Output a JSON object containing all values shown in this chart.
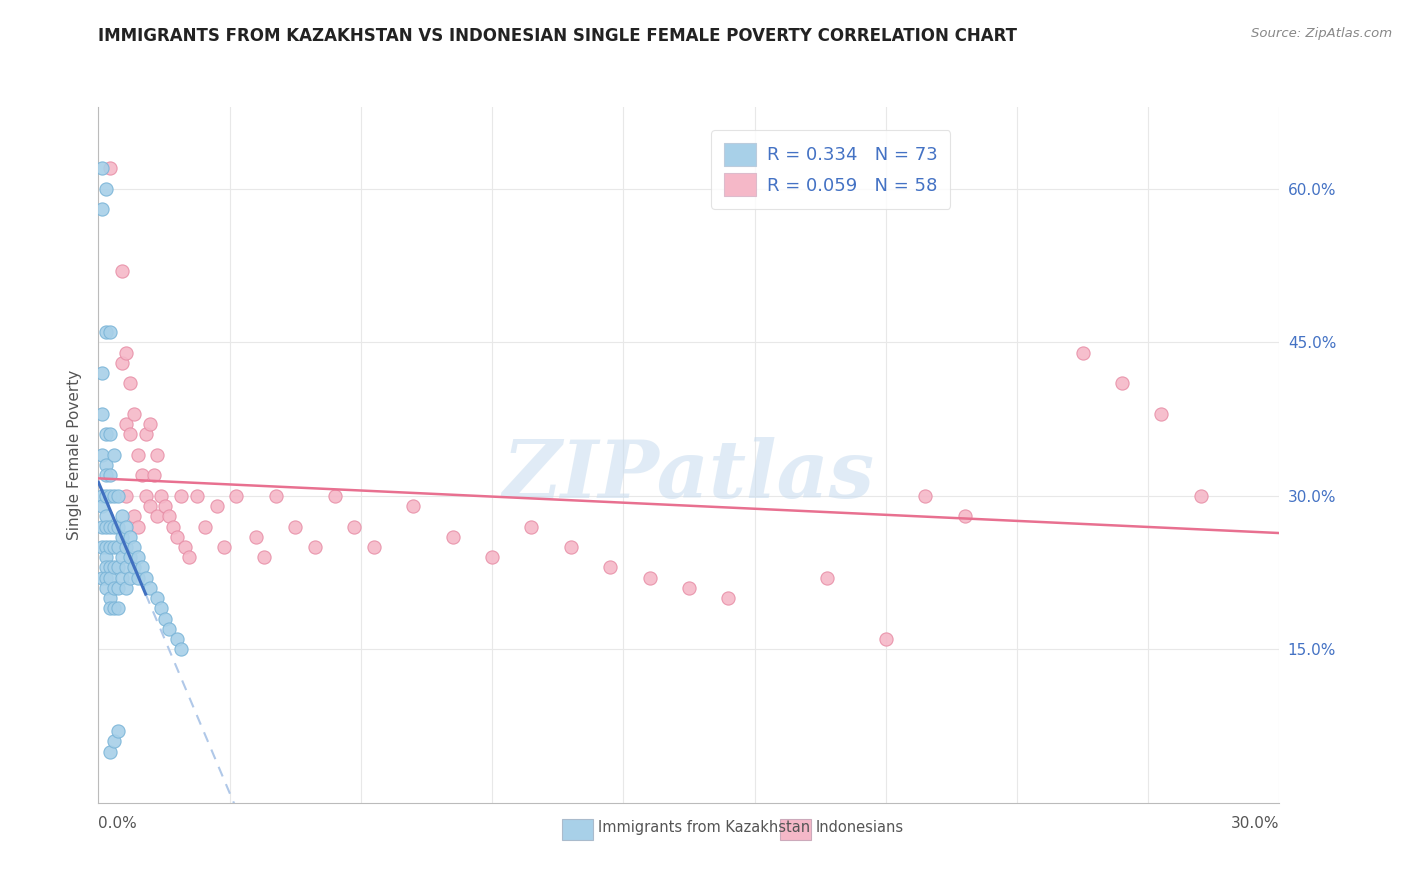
{
  "title": "IMMIGRANTS FROM KAZAKHSTAN VS INDONESIAN SINGLE FEMALE POVERTY CORRELATION CHART",
  "source": "Source: ZipAtlas.com",
  "ylabel": "Single Female Poverty",
  "ylabel_ticks": [
    "15.0%",
    "30.0%",
    "45.0%",
    "60.0%"
  ],
  "ylabel_tick_vals": [
    0.15,
    0.3,
    0.45,
    0.6
  ],
  "xlim": [
    0.0,
    0.3
  ],
  "ylim": [
    0.0,
    0.68
  ],
  "blue_color": "#A8D0E8",
  "pink_color": "#F5B8C8",
  "blue_edge_color": "#7BB5D8",
  "pink_edge_color": "#E890A8",
  "blue_line_color": "#4070C0",
  "pink_line_color": "#E87090",
  "blue_dashed_color": "#B0C8E8",
  "watermark": "ZIPatlas",
  "legend_label1": "Immigrants from Kazakhstan",
  "legend_label2": "Indonesians",
  "legend_text_color": "#4472C4",
  "grid_color": "#E8E8E8",
  "title_color": "#222222",
  "source_color": "#888888",
  "ylabel_color": "#555555",
  "tick_label_color": "#4472C4",
  "bottom_label_color": "#555555",
  "blue_scatter_x": [
    0.001,
    0.001,
    0.001,
    0.001,
    0.001,
    0.001,
    0.001,
    0.001,
    0.001,
    0.001,
    0.002,
    0.002,
    0.002,
    0.002,
    0.002,
    0.002,
    0.002,
    0.002,
    0.002,
    0.002,
    0.002,
    0.002,
    0.002,
    0.003,
    0.003,
    0.003,
    0.003,
    0.003,
    0.003,
    0.003,
    0.003,
    0.003,
    0.003,
    0.004,
    0.004,
    0.004,
    0.004,
    0.004,
    0.004,
    0.004,
    0.005,
    0.005,
    0.005,
    0.005,
    0.005,
    0.005,
    0.006,
    0.006,
    0.006,
    0.006,
    0.007,
    0.007,
    0.007,
    0.007,
    0.008,
    0.008,
    0.008,
    0.009,
    0.009,
    0.01,
    0.01,
    0.011,
    0.012,
    0.013,
    0.015,
    0.016,
    0.017,
    0.018,
    0.02,
    0.021,
    0.003,
    0.004,
    0.005
  ],
  "blue_scatter_y": [
    0.62,
    0.58,
    0.42,
    0.38,
    0.34,
    0.3,
    0.29,
    0.27,
    0.25,
    0.22,
    0.6,
    0.46,
    0.36,
    0.33,
    0.32,
    0.3,
    0.28,
    0.27,
    0.25,
    0.24,
    0.23,
    0.22,
    0.21,
    0.46,
    0.36,
    0.32,
    0.3,
    0.27,
    0.25,
    0.23,
    0.22,
    0.2,
    0.19,
    0.34,
    0.3,
    0.27,
    0.25,
    0.23,
    0.21,
    0.19,
    0.3,
    0.27,
    0.25,
    0.23,
    0.21,
    0.19,
    0.28,
    0.26,
    0.24,
    0.22,
    0.27,
    0.25,
    0.23,
    0.21,
    0.26,
    0.24,
    0.22,
    0.25,
    0.23,
    0.24,
    0.22,
    0.23,
    0.22,
    0.21,
    0.2,
    0.19,
    0.18,
    0.17,
    0.16,
    0.15,
    0.05,
    0.06,
    0.07
  ],
  "pink_scatter_x": [
    0.003,
    0.006,
    0.006,
    0.007,
    0.007,
    0.007,
    0.008,
    0.008,
    0.009,
    0.009,
    0.01,
    0.01,
    0.011,
    0.012,
    0.012,
    0.013,
    0.013,
    0.014,
    0.015,
    0.015,
    0.016,
    0.017,
    0.018,
    0.019,
    0.02,
    0.021,
    0.022,
    0.023,
    0.025,
    0.027,
    0.03,
    0.032,
    0.035,
    0.04,
    0.042,
    0.045,
    0.05,
    0.055,
    0.06,
    0.065,
    0.07,
    0.08,
    0.09,
    0.1,
    0.11,
    0.12,
    0.13,
    0.14,
    0.15,
    0.16,
    0.185,
    0.2,
    0.21,
    0.22,
    0.25,
    0.26,
    0.27,
    0.28
  ],
  "pink_scatter_y": [
    0.62,
    0.52,
    0.43,
    0.44,
    0.37,
    0.3,
    0.41,
    0.36,
    0.38,
    0.28,
    0.34,
    0.27,
    0.32,
    0.36,
    0.3,
    0.37,
    0.29,
    0.32,
    0.34,
    0.28,
    0.3,
    0.29,
    0.28,
    0.27,
    0.26,
    0.3,
    0.25,
    0.24,
    0.3,
    0.27,
    0.29,
    0.25,
    0.3,
    0.26,
    0.24,
    0.3,
    0.27,
    0.25,
    0.3,
    0.27,
    0.25,
    0.29,
    0.26,
    0.24,
    0.27,
    0.25,
    0.23,
    0.22,
    0.21,
    0.2,
    0.22,
    0.16,
    0.3,
    0.28,
    0.44,
    0.41,
    0.38,
    0.3
  ]
}
